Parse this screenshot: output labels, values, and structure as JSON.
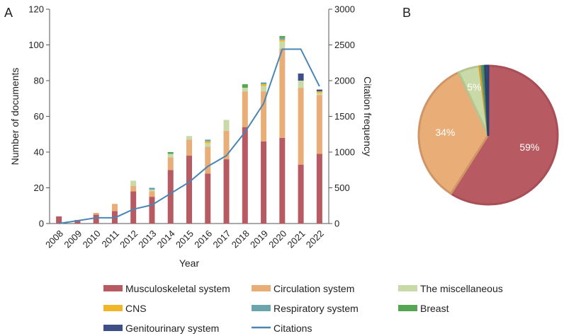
{
  "panels": {
    "a": "A",
    "b": "B"
  },
  "chart_data": [
    {
      "type": "bar",
      "subtype": "stacked-bar-with-line",
      "xlabel": "Year",
      "ylabel": "Number of documents",
      "y2label": "Citation frequency",
      "ylim": [
        0,
        120
      ],
      "y2lim": [
        0,
        3000
      ],
      "yticks": [
        0,
        20,
        40,
        60,
        80,
        100,
        120
      ],
      "y2ticks": [
        0,
        500,
        1000,
        1500,
        2000,
        2500,
        3000
      ],
      "categories": [
        "2008",
        "2009",
        "2010",
        "2011",
        "2012",
        "2013",
        "2014",
        "2015",
        "2016",
        "2017",
        "2018",
        "2019",
        "2020",
        "2021",
        "2022"
      ],
      "series": [
        {
          "name": "Musculoskeletal system",
          "color": "#b85a62",
          "values": [
            4,
            2,
            5,
            7,
            18,
            15,
            30,
            38,
            28,
            36,
            54,
            46,
            48,
            33,
            39
          ]
        },
        {
          "name": "Circulation system",
          "color": "#e9ae78",
          "values": [
            0,
            0,
            1,
            4,
            3,
            3,
            7,
            9,
            15,
            16,
            20,
            28,
            50,
            43,
            33
          ]
        },
        {
          "name": "The miscellaneous",
          "color": "#c9d9a8",
          "values": [
            0,
            0,
            0,
            0,
            3,
            1,
            2,
            2,
            2,
            6,
            2,
            3,
            4,
            4,
            1
          ]
        },
        {
          "name": "CNS",
          "color": "#f1b52a",
          "values": [
            0,
            0,
            0,
            0,
            0,
            0,
            0,
            0,
            1,
            0,
            0,
            1,
            1,
            0,
            1
          ]
        },
        {
          "name": "Respiratory system",
          "color": "#6aa4ad",
          "values": [
            0,
            0,
            0,
            0,
            0,
            1,
            0,
            0,
            1,
            0,
            0,
            1,
            1,
            0,
            0
          ]
        },
        {
          "name": "Breast",
          "color": "#56a552",
          "values": [
            0,
            0,
            0,
            0,
            0,
            0,
            1,
            0,
            0,
            0,
            2,
            0,
            1,
            0,
            0
          ]
        },
        {
          "name": "Genitourinary system",
          "color": "#3d4f86",
          "values": [
            0,
            0,
            0,
            0,
            0,
            0,
            0,
            0,
            0,
            0,
            0,
            0,
            0,
            4,
            1
          ]
        }
      ],
      "line": {
        "name": "Citations",
        "color": "#4a86b4",
        "axis": "right",
        "values": [
          0,
          40,
          80,
          80,
          200,
          260,
          420,
          580,
          800,
          950,
          1280,
          1680,
          2440,
          2440,
          1920
        ]
      }
    },
    {
      "type": "pie",
      "slices": [
        {
          "name": "Musculoskeletal system",
          "value": 59,
          "label": "59%",
          "color": "#b85a62",
          "edge": "#a84e56"
        },
        {
          "name": "Circulation system",
          "value": 34,
          "label": "34%",
          "color": "#e9ae78",
          "edge": "#d09566"
        },
        {
          "name": "The miscellaneous",
          "value": 5,
          "label": "5%",
          "color": "#c9d9a8",
          "edge": "#b3c690"
        },
        {
          "name": "CNS",
          "value": 0.5,
          "label": "",
          "color": "#f1b52a",
          "edge": "#d79f1f"
        },
        {
          "name": "Respiratory system",
          "value": 0.4,
          "label": "",
          "color": "#6aa4ad",
          "edge": "#578f98"
        },
        {
          "name": "Breast",
          "value": 0.4,
          "label": "",
          "color": "#56a552",
          "edge": "#468f43"
        },
        {
          "name": "Genitourinary system",
          "value": 0.7,
          "label": "",
          "color": "#3d4f86",
          "edge": "#2f3f70"
        }
      ]
    }
  ],
  "legend": [
    {
      "label": "Musculoskeletal system",
      "color": "#b85a62",
      "kind": "box"
    },
    {
      "label": "Circulation system",
      "color": "#e9ae78",
      "kind": "box"
    },
    {
      "label": "The miscellaneous",
      "color": "#c9d9a8",
      "kind": "box"
    },
    {
      "label": "CNS",
      "color": "#f1b52a",
      "kind": "box"
    },
    {
      "label": "Respiratory system",
      "color": "#6aa4ad",
      "kind": "box"
    },
    {
      "label": "Breast",
      "color": "#56a552",
      "kind": "box"
    },
    {
      "label": "Genitourinary system",
      "color": "#3d4f86",
      "kind": "box"
    },
    {
      "label": "Citations",
      "color": "#4a86b4",
      "kind": "line"
    }
  ]
}
